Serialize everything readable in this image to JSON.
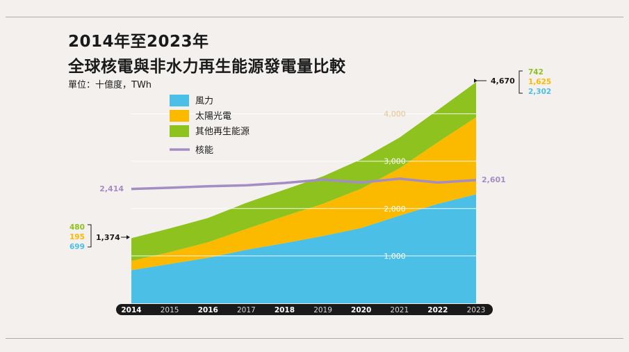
{
  "title_line1": "2014年至2023年",
  "title_line2": "全球核電與非水力再生能源發電量比較",
  "unit": "單位：十億度，TWh",
  "colors": {
    "wind": "#4bbfe6",
    "solar": "#fbb900",
    "other": "#8dc21f",
    "nuclear": "#a48cc5",
    "background": "#f3f0ee",
    "axis_bar": "#1a1a1a"
  },
  "chart_data": {
    "type": "area",
    "x": [
      "2014",
      "2015",
      "2016",
      "2017",
      "2018",
      "2019",
      "2020",
      "2021",
      "2022",
      "2023"
    ],
    "bold_years": [
      "2014",
      "2016",
      "2018",
      "2020",
      "2022"
    ],
    "ylim": [
      0,
      4670
    ],
    "y_ticks": [
      {
        "value": 1000,
        "label": "1,000"
      },
      {
        "value": 2000,
        "label": "2,000"
      },
      {
        "value": 3000,
        "label": "3,000"
      },
      {
        "value": 4000,
        "label": "4,000"
      }
    ],
    "grid": true,
    "legend_position": "top-left",
    "stacked_series": [
      {
        "name": "風力",
        "color_key": "wind",
        "values": [
          699,
          830,
          960,
          1130,
          1270,
          1420,
          1590,
          1850,
          2100,
          2302
        ]
      },
      {
        "name": "太陽光電",
        "color_key": "solar",
        "values": [
          195,
          250,
          330,
          440,
          570,
          680,
          830,
          1000,
          1300,
          1625
        ]
      },
      {
        "name": "其他再生能源",
        "color_key": "other",
        "values": [
          480,
          500,
          510,
          550,
          560,
          580,
          620,
          650,
          680,
          742
        ]
      }
    ],
    "line_series": {
      "name": "核能",
      "color_key": "nuclear",
      "values": [
        2414,
        2440,
        2470,
        2490,
        2540,
        2610,
        2550,
        2630,
        2550,
        2601
      ]
    },
    "annotations": {
      "start_total": "1,374",
      "start_breakdown": [
        "480",
        "195",
        "699"
      ],
      "end_total": "4,670",
      "end_breakdown": [
        "742",
        "1,625",
        "2,302"
      ],
      "nuclear_start": "2,414",
      "nuclear_end": "2,601"
    }
  }
}
